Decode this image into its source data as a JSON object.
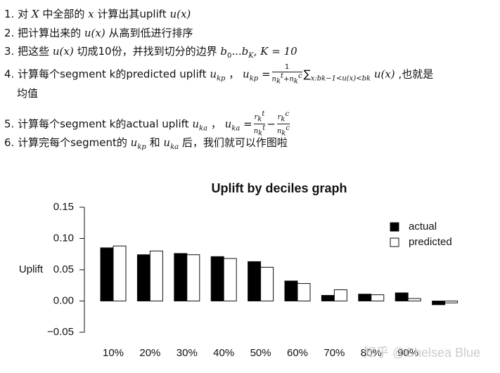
{
  "steps": [
    {
      "label": "1.",
      "parts": [
        "对",
        "X",
        "中全部的",
        "x",
        "计算出其uplift",
        "u(x)"
      ]
    },
    {
      "label": "2.",
      "parts": [
        "把计算出来的",
        "u(x)",
        "从高到低进行排序"
      ]
    },
    {
      "label": "3.",
      "parts": [
        "把这些",
        "u(x)",
        "切成10份，并找到切分的边界",
        "b",
        "0",
        "...",
        "b",
        "K",
        ", K = 10"
      ]
    },
    {
      "label": "4.",
      "parts": [
        "计算每个segment k的predicted uplift",
        "u",
        "kp",
        "，",
        "u",
        "kp",
        "=",
        "1",
        "n",
        "k",
        "t",
        "+",
        "n",
        "k",
        "c",
        "∑",
        "x:b",
        "k−1",
        "<u(x)<b",
        "k",
        "u(x)",
        ",也就是",
        "均值"
      ]
    },
    {
      "label": "5.",
      "parts": [
        "计算每个segment k的actual uplift",
        "u",
        "ka",
        "，",
        "u",
        "ka",
        "=",
        "r",
        "k",
        "t",
        "n",
        "k",
        "t",
        "−",
        "r",
        "k",
        "c",
        "n",
        "k",
        "c"
      ]
    },
    {
      "label": "6.",
      "parts": [
        "计算完每个segment的",
        "u",
        "kp",
        "和",
        "u",
        "ka",
        "后，我们就可以作图啦"
      ]
    }
  ],
  "chart_data": {
    "type": "bar",
    "title": "Uplift by deciles graph",
    "y_label": "Uplift",
    "categories": [
      "10%",
      "20%",
      "30%",
      "40%",
      "50%",
      "60%",
      "70%",
      "80%",
      "90%",
      null
    ],
    "series": [
      {
        "name": "actual",
        "color": "#000000",
        "values": [
          0.085,
          0.074,
          0.076,
          0.071,
          0.063,
          0.032,
          0.009,
          0.011,
          0.013,
          -0.006
        ]
      },
      {
        "name": "predicted",
        "color": "#ffffff",
        "values": [
          0.088,
          0.08,
          0.074,
          0.068,
          0.054,
          0.028,
          0.018,
          0.01,
          0.004,
          -0.003
        ]
      }
    ],
    "ylim": [
      -0.05,
      0.15
    ],
    "yticks": [
      {
        "value": -0.05,
        "label": "−0.05"
      },
      {
        "value": 0,
        "label": "0.00"
      },
      {
        "value": 0.05,
        "label": "0.05"
      },
      {
        "value": 0.1,
        "label": "0.10"
      },
      {
        "value": 0.15,
        "label": "0.15"
      }
    ],
    "legend": "top-right"
  },
  "watermark": "知乎 @Chelsea Blue"
}
